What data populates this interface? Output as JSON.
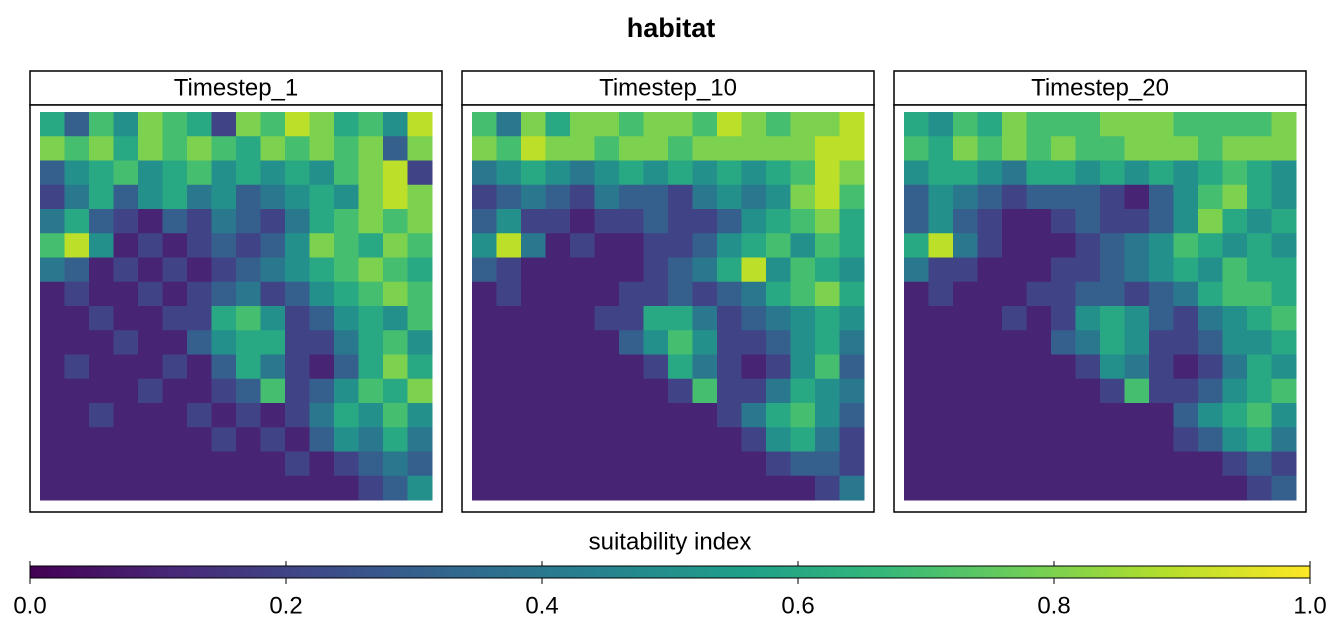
{
  "chart_data": {
    "type": "heatmap",
    "title": "habitat",
    "colors": [
      "#440154",
      "#482878",
      "#3e4a89",
      "#31688e",
      "#26828e",
      "#1f9e89",
      "#35b779",
      "#6ece58",
      "#b5de2b",
      "#fde725"
    ],
    "clim": [
      0,
      1
    ],
    "cticks": [
      {
        "value": 0,
        "label": "0.0"
      },
      0.2,
      0.4,
      0.6,
      0.8,
      {
        "value": 1,
        "label": "1.0"
      }
    ],
    "colorbar_label": "suitability index",
    "panels": [
      {
        "name": "Timestep_1",
        "values": [
          [
            0.6,
            0.3,
            0.7,
            0.5,
            0.8,
            0.7,
            0.6,
            0.2,
            0.8,
            0.7,
            0.9,
            0.8,
            0.6,
            0.7,
            0.5,
            0.9
          ],
          [
            0.8,
            0.7,
            0.8,
            0.6,
            0.8,
            0.7,
            0.8,
            0.7,
            0.6,
            0.8,
            0.7,
            0.8,
            0.7,
            0.8,
            0.3,
            0.8
          ],
          [
            0.3,
            0.5,
            0.6,
            0.7,
            0.5,
            0.6,
            0.7,
            0.5,
            0.6,
            0.5,
            0.6,
            0.5,
            0.7,
            0.8,
            0.9,
            0.2
          ],
          [
            0.2,
            0.4,
            0.6,
            0.3,
            0.5,
            0.6,
            0.4,
            0.5,
            0.3,
            0.4,
            0.5,
            0.6,
            0.5,
            0.8,
            0.9,
            0.8
          ],
          [
            0.4,
            0.6,
            0.3,
            0.2,
            0.1,
            0.3,
            0.2,
            0.4,
            0.3,
            0.2,
            0.4,
            0.6,
            0.7,
            0.8,
            0.7,
            0.8
          ],
          [
            0.7,
            0.9,
            0.5,
            0.1,
            0.2,
            0.1,
            0.2,
            0.3,
            0.2,
            0.3,
            0.5,
            0.8,
            0.7,
            0.6,
            0.8,
            0.7
          ],
          [
            0.4,
            0.3,
            0.1,
            0.2,
            0.1,
            0.2,
            0.1,
            0.2,
            0.3,
            0.4,
            0.5,
            0.6,
            0.7,
            0.8,
            0.7,
            0.6
          ],
          [
            0.1,
            0.2,
            0.1,
            0.1,
            0.2,
            0.1,
            0.2,
            0.3,
            0.4,
            0.2,
            0.3,
            0.5,
            0.6,
            0.7,
            0.8,
            0.7
          ],
          [
            0.1,
            0.1,
            0.2,
            0.1,
            0.1,
            0.2,
            0.2,
            0.6,
            0.7,
            0.5,
            0.2,
            0.3,
            0.5,
            0.6,
            0.5,
            0.7
          ],
          [
            0.1,
            0.1,
            0.1,
            0.2,
            0.1,
            0.1,
            0.3,
            0.5,
            0.6,
            0.6,
            0.2,
            0.2,
            0.4,
            0.6,
            0.7,
            0.5
          ],
          [
            0.1,
            0.2,
            0.1,
            0.1,
            0.1,
            0.2,
            0.1,
            0.3,
            0.6,
            0.4,
            0.2,
            0.1,
            0.3,
            0.6,
            0.8,
            0.6
          ],
          [
            0.1,
            0.1,
            0.1,
            0.1,
            0.2,
            0.1,
            0.1,
            0.2,
            0.3,
            0.7,
            0.2,
            0.3,
            0.5,
            0.7,
            0.6,
            0.8
          ],
          [
            0.1,
            0.1,
            0.2,
            0.1,
            0.1,
            0.1,
            0.2,
            0.1,
            0.2,
            0.1,
            0.2,
            0.4,
            0.6,
            0.5,
            0.7,
            0.5
          ],
          [
            0.1,
            0.1,
            0.1,
            0.1,
            0.1,
            0.1,
            0.1,
            0.2,
            0.1,
            0.2,
            0.1,
            0.3,
            0.5,
            0.4,
            0.6,
            0.4
          ],
          [
            0.1,
            0.1,
            0.1,
            0.1,
            0.1,
            0.1,
            0.1,
            0.1,
            0.1,
            0.1,
            0.2,
            0.1,
            0.2,
            0.3,
            0.4,
            0.3
          ],
          [
            0.1,
            0.1,
            0.1,
            0.1,
            0.1,
            0.1,
            0.1,
            0.1,
            0.1,
            0.1,
            0.1,
            0.1,
            0.1,
            0.2,
            0.3,
            0.5
          ]
        ]
      },
      {
        "name": "Timestep_10",
        "values": [
          [
            0.7,
            0.4,
            0.8,
            0.6,
            0.8,
            0.8,
            0.7,
            0.8,
            0.8,
            0.7,
            0.9,
            0.8,
            0.7,
            0.8,
            0.8,
            0.9
          ],
          [
            0.8,
            0.7,
            0.9,
            0.8,
            0.8,
            0.7,
            0.8,
            0.8,
            0.7,
            0.8,
            0.8,
            0.8,
            0.8,
            0.8,
            0.9,
            0.9
          ],
          [
            0.4,
            0.5,
            0.6,
            0.5,
            0.4,
            0.5,
            0.6,
            0.5,
            0.6,
            0.5,
            0.6,
            0.5,
            0.6,
            0.7,
            0.9,
            0.8
          ],
          [
            0.2,
            0.3,
            0.4,
            0.3,
            0.2,
            0.4,
            0.3,
            0.3,
            0.2,
            0.4,
            0.5,
            0.4,
            0.5,
            0.8,
            0.9,
            0.7
          ],
          [
            0.3,
            0.5,
            0.2,
            0.2,
            0.1,
            0.2,
            0.2,
            0.3,
            0.2,
            0.2,
            0.3,
            0.5,
            0.6,
            0.7,
            0.8,
            0.6
          ],
          [
            0.5,
            0.9,
            0.4,
            0.1,
            0.2,
            0.1,
            0.1,
            0.2,
            0.2,
            0.3,
            0.5,
            0.6,
            0.7,
            0.5,
            0.7,
            0.6
          ],
          [
            0.3,
            0.2,
            0.1,
            0.1,
            0.1,
            0.1,
            0.1,
            0.2,
            0.3,
            0.4,
            0.6,
            0.9,
            0.5,
            0.7,
            0.6,
            0.5
          ],
          [
            0.1,
            0.2,
            0.1,
            0.1,
            0.1,
            0.1,
            0.2,
            0.2,
            0.3,
            0.2,
            0.3,
            0.4,
            0.6,
            0.7,
            0.8,
            0.6
          ],
          [
            0.1,
            0.1,
            0.1,
            0.1,
            0.1,
            0.2,
            0.2,
            0.6,
            0.6,
            0.4,
            0.2,
            0.3,
            0.4,
            0.5,
            0.6,
            0.5
          ],
          [
            0.1,
            0.1,
            0.1,
            0.1,
            0.1,
            0.1,
            0.3,
            0.5,
            0.7,
            0.5,
            0.2,
            0.2,
            0.3,
            0.5,
            0.6,
            0.4
          ],
          [
            0.1,
            0.1,
            0.1,
            0.1,
            0.1,
            0.1,
            0.1,
            0.2,
            0.6,
            0.4,
            0.2,
            0.1,
            0.2,
            0.5,
            0.7,
            0.3
          ],
          [
            0.1,
            0.1,
            0.1,
            0.1,
            0.1,
            0.1,
            0.1,
            0.1,
            0.2,
            0.7,
            0.2,
            0.2,
            0.4,
            0.6,
            0.5,
            0.4
          ],
          [
            0.1,
            0.1,
            0.1,
            0.1,
            0.1,
            0.1,
            0.1,
            0.1,
            0.1,
            0.1,
            0.2,
            0.4,
            0.6,
            0.7,
            0.5,
            0.3
          ],
          [
            0.1,
            0.1,
            0.1,
            0.1,
            0.1,
            0.1,
            0.1,
            0.1,
            0.1,
            0.1,
            0.1,
            0.2,
            0.5,
            0.6,
            0.4,
            0.2
          ],
          [
            0.1,
            0.1,
            0.1,
            0.1,
            0.1,
            0.1,
            0.1,
            0.1,
            0.1,
            0.1,
            0.1,
            0.1,
            0.2,
            0.3,
            0.3,
            0.2
          ],
          [
            0.1,
            0.1,
            0.1,
            0.1,
            0.1,
            0.1,
            0.1,
            0.1,
            0.1,
            0.1,
            0.1,
            0.1,
            0.1,
            0.1,
            0.2,
            0.4
          ]
        ]
      },
      {
        "name": "Timestep_20",
        "values": [
          [
            0.6,
            0.5,
            0.7,
            0.6,
            0.8,
            0.7,
            0.7,
            0.7,
            0.8,
            0.8,
            0.8,
            0.7,
            0.7,
            0.7,
            0.7,
            0.8
          ],
          [
            0.7,
            0.6,
            0.8,
            0.7,
            0.8,
            0.7,
            0.8,
            0.7,
            0.7,
            0.8,
            0.8,
            0.8,
            0.7,
            0.8,
            0.8,
            0.8
          ],
          [
            0.5,
            0.6,
            0.6,
            0.5,
            0.4,
            0.6,
            0.6,
            0.5,
            0.6,
            0.5,
            0.6,
            0.5,
            0.6,
            0.7,
            0.6,
            0.5
          ],
          [
            0.3,
            0.5,
            0.4,
            0.3,
            0.2,
            0.3,
            0.3,
            0.3,
            0.2,
            0.1,
            0.3,
            0.5,
            0.7,
            0.8,
            0.6,
            0.5
          ],
          [
            0.3,
            0.5,
            0.3,
            0.2,
            0.1,
            0.1,
            0.2,
            0.3,
            0.2,
            0.2,
            0.3,
            0.5,
            0.8,
            0.6,
            0.5,
            0.6
          ],
          [
            0.6,
            0.9,
            0.4,
            0.2,
            0.1,
            0.1,
            0.1,
            0.2,
            0.3,
            0.4,
            0.5,
            0.7,
            0.6,
            0.5,
            0.6,
            0.5
          ],
          [
            0.4,
            0.2,
            0.2,
            0.1,
            0.1,
            0.1,
            0.2,
            0.2,
            0.3,
            0.4,
            0.5,
            0.6,
            0.5,
            0.7,
            0.6,
            0.6
          ],
          [
            0.1,
            0.2,
            0.1,
            0.1,
            0.1,
            0.2,
            0.2,
            0.3,
            0.3,
            0.2,
            0.3,
            0.4,
            0.6,
            0.7,
            0.7,
            0.6
          ],
          [
            0.1,
            0.1,
            0.1,
            0.1,
            0.2,
            0.1,
            0.2,
            0.5,
            0.6,
            0.5,
            0.3,
            0.2,
            0.4,
            0.5,
            0.6,
            0.7
          ],
          [
            0.1,
            0.1,
            0.1,
            0.1,
            0.1,
            0.1,
            0.3,
            0.4,
            0.6,
            0.5,
            0.2,
            0.2,
            0.3,
            0.5,
            0.5,
            0.6
          ],
          [
            0.1,
            0.1,
            0.1,
            0.1,
            0.1,
            0.1,
            0.1,
            0.2,
            0.5,
            0.4,
            0.2,
            0.1,
            0.2,
            0.4,
            0.6,
            0.5
          ],
          [
            0.1,
            0.1,
            0.1,
            0.1,
            0.1,
            0.1,
            0.1,
            0.1,
            0.2,
            0.7,
            0.2,
            0.2,
            0.3,
            0.5,
            0.6,
            0.7
          ],
          [
            0.1,
            0.1,
            0.1,
            0.1,
            0.1,
            0.1,
            0.1,
            0.1,
            0.1,
            0.1,
            0.1,
            0.3,
            0.5,
            0.6,
            0.7,
            0.5
          ],
          [
            0.1,
            0.1,
            0.1,
            0.1,
            0.1,
            0.1,
            0.1,
            0.1,
            0.1,
            0.1,
            0.1,
            0.2,
            0.3,
            0.5,
            0.6,
            0.4
          ],
          [
            0.1,
            0.1,
            0.1,
            0.1,
            0.1,
            0.1,
            0.1,
            0.1,
            0.1,
            0.1,
            0.1,
            0.1,
            0.1,
            0.2,
            0.3,
            0.2
          ],
          [
            0.1,
            0.1,
            0.1,
            0.1,
            0.1,
            0.1,
            0.1,
            0.1,
            0.1,
            0.1,
            0.1,
            0.1,
            0.1,
            0.1,
            0.2,
            0.3
          ]
        ]
      }
    ]
  }
}
